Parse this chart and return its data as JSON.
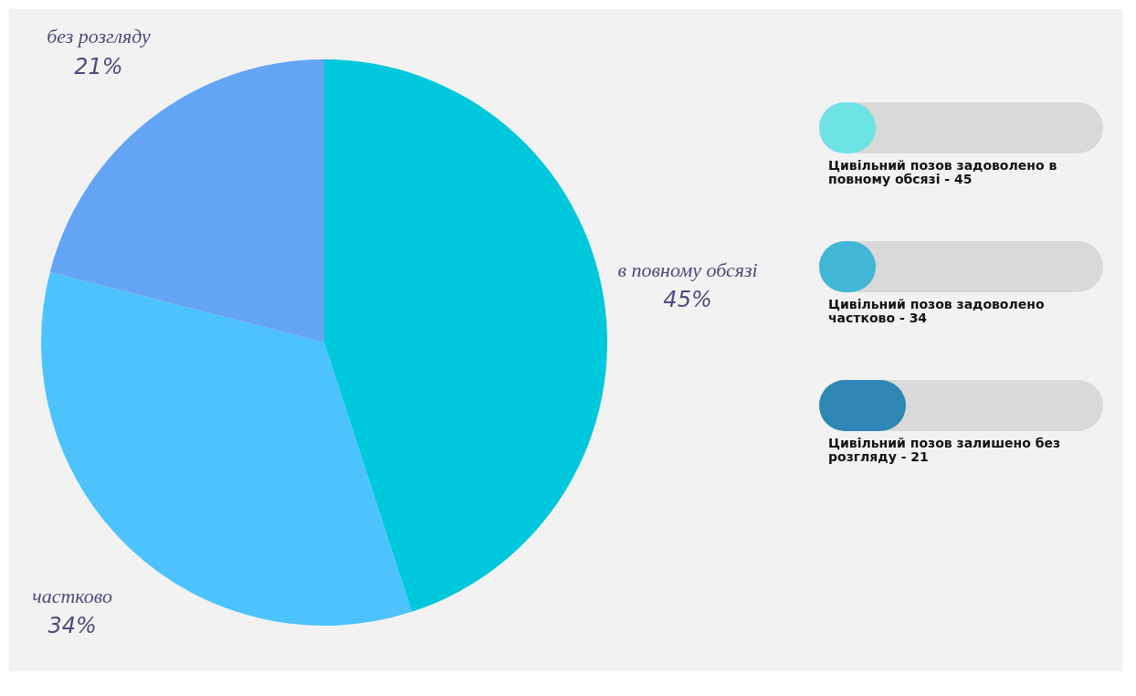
{
  "chart_data": [
    {
      "type": "pie",
      "categories": [
        "в повному обсязі",
        "частково",
        "без розгляду"
      ],
      "values": [
        45,
        34,
        21
      ],
      "colors": [
        "#00c8dc",
        "#4cc3fc",
        "#64a4f5"
      ],
      "value_labels": [
        "45%",
        "34%",
        "21%"
      ]
    },
    {
      "type": "other",
      "annotations": [
        "Цивільний позов задоволено в повному обсязі - 45",
        "Цивільний позов задоволено частково - 34",
        "Цивільний позов залишено без розгляду - 21"
      ]
    }
  ]
}
